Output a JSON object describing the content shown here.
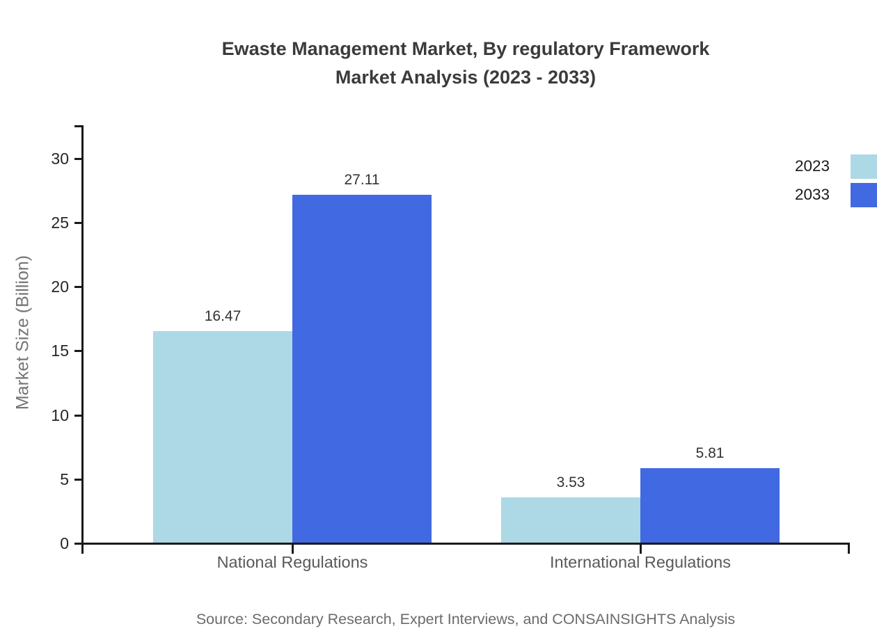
{
  "chart": {
    "title_line1": "Ewaste Management Market, By regulatory Framework",
    "title_line2": "Market Analysis (2023 - 2033)",
    "source": "Source: Secondary Research, Expert Interviews, and CONSAINSIGHTS Analysis"
  },
  "chart_data": {
    "type": "bar",
    "title": "Ewaste Management Market, By regulatory Framework Market Analysis (2023 - 2033)",
    "categories": [
      "National Regulations",
      "International Regulations"
    ],
    "series": [
      {
        "name": "2023",
        "color": "#ADD8E6",
        "values": [
          16.47,
          3.53
        ]
      },
      {
        "name": "2033",
        "color": "#4169E1",
        "values": [
          27.11,
          5.81
        ]
      }
    ],
    "value_labels": [
      [
        "16.47",
        "3.53"
      ],
      [
        "27.11",
        "5.81"
      ]
    ],
    "xlabel": "",
    "ylabel": "Market Size (Billion)",
    "yticks": [
      0,
      5,
      10,
      15,
      20,
      25,
      30
    ],
    "ylim": [
      0,
      32.5
    ],
    "grid": false,
    "legend_position": "top-right",
    "axis_color": "#1a1a1a",
    "background_color": "#ffffff"
  }
}
